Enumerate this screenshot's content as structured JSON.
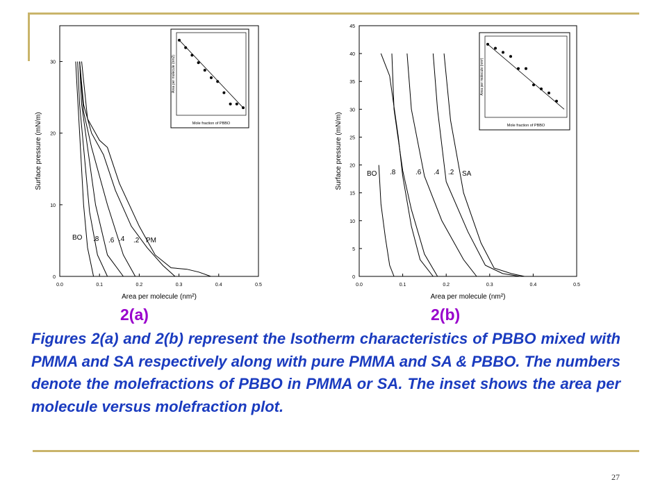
{
  "slide": {
    "label_a": "2(a)",
    "label_b": "2(b)",
    "caption": "Figures 2(a) and 2(b) represent the Isotherm characteristics of PBBO mixed with PMMA and SA respectively along with pure PMMA and SA & PBBO. The numbers denote the molefractions of PBBO in PMMA or SA. The inset shows the area per molecule versus molefraction plot.",
    "page_number": "27",
    "accent_color": "#c9b46a",
    "label_color": "#9900cc",
    "caption_color": "#1a3bbf"
  },
  "chart_data": [
    {
      "type": "line",
      "panel": "2(a)",
      "xlabel": "Area per molecule (nm²)",
      "ylabel": "Surface pressure (mN/m)",
      "xlim": [
        0.0,
        0.5
      ],
      "ylim": [
        0,
        35
      ],
      "xticks": [
        "0.0",
        "0.1",
        "0.2",
        "0.3",
        "0.4",
        "0.5"
      ],
      "yticks": [
        "0",
        "10",
        "20",
        "30"
      ],
      "series_labels": [
        "BO",
        ".8",
        ".6",
        ".4",
        ".2",
        "PM"
      ],
      "series": [
        {
          "x": [
            0.04,
            0.045,
            0.05,
            0.06,
            0.07,
            0.085
          ],
          "y": [
            30,
            25,
            20,
            10,
            4,
            0
          ]
        },
        {
          "x": [
            0.045,
            0.05,
            0.06,
            0.075,
            0.095,
            0.12
          ],
          "y": [
            30,
            24,
            18,
            9,
            3,
            0
          ]
        },
        {
          "x": [
            0.05,
            0.055,
            0.07,
            0.09,
            0.12,
            0.16
          ],
          "y": [
            30,
            24,
            18,
            10,
            3,
            0
          ]
        },
        {
          "x": [
            0.05,
            0.06,
            0.08,
            0.12,
            0.16,
            0.19
          ],
          "y": [
            30,
            23,
            18,
            10,
            3,
            0
          ]
        },
        {
          "x": [
            0.05,
            0.06,
            0.08,
            0.11,
            0.14,
            0.18,
            0.22,
            0.26,
            0.29
          ],
          "y": [
            30,
            24,
            20,
            17,
            12,
            7,
            4,
            1.5,
            0
          ]
        },
        {
          "x": [
            0.055,
            0.07,
            0.1,
            0.12,
            0.15,
            0.2,
            0.24,
            0.28,
            0.32,
            0.35,
            0.38
          ],
          "y": [
            30,
            22,
            19,
            18,
            13,
            7,
            3,
            1.2,
            1.0,
            0.6,
            0
          ]
        }
      ],
      "inset": {
        "xlabel": "Mole fraction of PBBO",
        "ylabel": "Area per molecule (nm2)",
        "points": [
          [
            0.0,
            0.22
          ],
          [
            0.1,
            0.21
          ],
          [
            0.2,
            0.2
          ],
          [
            0.3,
            0.19
          ],
          [
            0.4,
            0.18
          ],
          [
            0.5,
            0.17
          ],
          [
            0.6,
            0.165
          ],
          [
            0.7,
            0.15
          ],
          [
            0.8,
            0.135
          ],
          [
            0.9,
            0.135
          ],
          [
            1.0,
            0.13
          ]
        ],
        "fit": [
          [
            0.0,
            0.22
          ],
          [
            1.0,
            0.13
          ]
        ]
      }
    },
    {
      "type": "line",
      "panel": "2(b)",
      "xlabel": "Area per molecule (nm²)",
      "ylabel": "Surface pressure (mN/m)",
      "xlim": [
        0.0,
        0.5
      ],
      "ylim": [
        0,
        45
      ],
      "xticks": [
        "0.0",
        "0.1",
        "0.2",
        "0.3",
        "0.4",
        "0.5"
      ],
      "yticks": [
        "0",
        "5",
        "10",
        "15",
        "20",
        "25",
        "30",
        "35",
        "40",
        "45"
      ],
      "series_labels": [
        "BO",
        ".8",
        ".6",
        ".4",
        ".2",
        "SA"
      ],
      "series": [
        {
          "x": [
            0.045,
            0.05,
            0.06,
            0.07,
            0.08
          ],
          "y": [
            20,
            13,
            7,
            2,
            0
          ]
        },
        {
          "x": [
            0.05,
            0.07,
            0.09,
            0.1,
            0.12,
            0.14,
            0.17
          ],
          "y": [
            40,
            36,
            25,
            18,
            9,
            3,
            0
          ]
        },
        {
          "x": [
            0.075,
            0.08,
            0.1,
            0.12,
            0.15,
            0.18
          ],
          "y": [
            40,
            30,
            19,
            12,
            4,
            0
          ]
        },
        {
          "x": [
            0.11,
            0.12,
            0.15,
            0.19,
            0.24,
            0.27
          ],
          "y": [
            40,
            30,
            18,
            10,
            3,
            0
          ]
        },
        {
          "x": [
            0.17,
            0.18,
            0.2,
            0.25,
            0.29,
            0.33,
            0.37
          ],
          "y": [
            40,
            30,
            17,
            8,
            2,
            0.5,
            0
          ]
        },
        {
          "x": [
            0.195,
            0.21,
            0.24,
            0.28,
            0.31,
            0.35,
            0.38
          ],
          "y": [
            40,
            28,
            15,
            6,
            1.5,
            0.5,
            0
          ]
        }
      ],
      "inset": {
        "xlabel": "Mole fraction of PBBO",
        "ylabel": "Area per molecule (nm²)",
        "points": [
          [
            0.0,
            0.25
          ],
          [
            0.1,
            0.245
          ],
          [
            0.2,
            0.24
          ],
          [
            0.3,
            0.235
          ],
          [
            0.4,
            0.22
          ],
          [
            0.5,
            0.22
          ],
          [
            0.6,
            0.2
          ],
          [
            0.7,
            0.195
          ],
          [
            0.8,
            0.19
          ],
          [
            0.9,
            0.18
          ]
        ],
        "fit": [
          [
            0.0,
            0.25
          ],
          [
            1.0,
            0.17
          ]
        ]
      }
    }
  ]
}
